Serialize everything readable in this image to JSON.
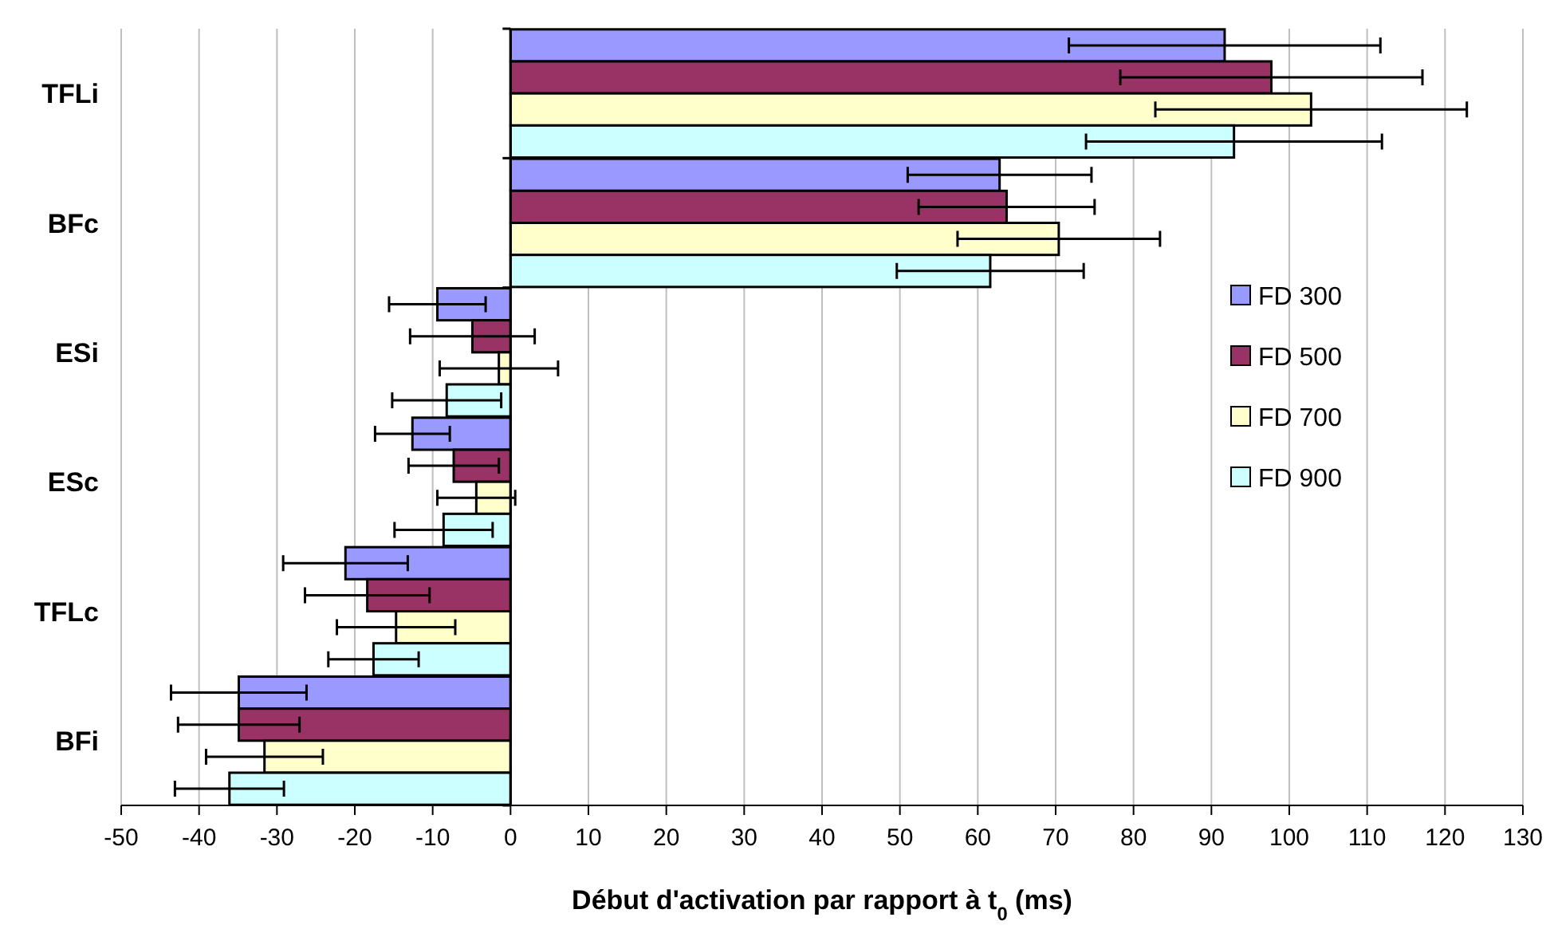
{
  "chart_data": {
    "type": "bar",
    "orientation": "horizontal",
    "xlabel": "Début d'activation par rapport à t$_{0}$ (ms)",
    "categories": [
      "TFLi",
      "BFc",
      "ESi",
      "ESc",
      "TFLc",
      "BFi"
    ],
    "xlim": [
      -50,
      130
    ],
    "xticks": [
      -50,
      -40,
      -30,
      -20,
      -10,
      0,
      10,
      20,
      30,
      40,
      50,
      60,
      70,
      80,
      90,
      100,
      110,
      120,
      130
    ],
    "grid": "x",
    "legend": "right",
    "series": [
      {
        "name": "FD 300",
        "color": "#9999ff",
        "values": [
          91.7,
          62.8,
          -9.4,
          -12.6,
          -21.2,
          -34.9
        ],
        "errors": [
          20,
          11.8,
          6.2,
          4.8,
          8,
          8.7
        ]
      },
      {
        "name": "FD 500",
        "color": "#993366",
        "values": [
          97.7,
          63.7,
          -4.9,
          -7.3,
          -18.4,
          -34.9
        ],
        "errors": [
          19.4,
          11.3,
          8,
          5.8,
          8,
          7.8
        ]
      },
      {
        "name": "FD 700",
        "color": "#ffffcc",
        "values": [
          102.8,
          70.4,
          -1.5,
          -4.4,
          -14.7,
          -31.6
        ],
        "errors": [
          20,
          13,
          7.6,
          5,
          7.6,
          7.5
        ]
      },
      {
        "name": "FD 900",
        "color": "#ccffff",
        "values": [
          92.9,
          61.6,
          -8.2,
          -8.6,
          -17.6,
          -36.1
        ],
        "errors": [
          19,
          12,
          7,
          6.3,
          5.8,
          7
        ]
      }
    ]
  }
}
